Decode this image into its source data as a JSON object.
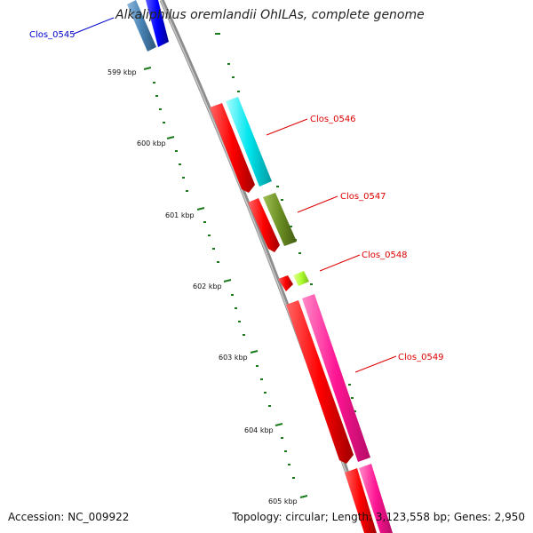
{
  "title": "Alkaliphilus oremlandii OhILAs, complete genome",
  "accession": "Accession: NC_009922",
  "summary": "Topology: circular; Length: 3,123,558 bp; Genes: 2,950",
  "ticks": [
    "599 kbp",
    "600 kbp",
    "601 kbp",
    "602 kbp",
    "603 kbp",
    "604 kbp",
    "605 kbp"
  ],
  "genes": [
    {
      "label": "Clos_0545",
      "color": "#0000cc"
    },
    {
      "label": "Clos_0546",
      "color": "#dd0000"
    },
    {
      "label": "Clos_0547",
      "color": "#dd0000"
    },
    {
      "label": "Clos_0548",
      "color": "#dd0000"
    },
    {
      "label": "Clos_0549",
      "color": "#dd0000"
    }
  ],
  "colors": {
    "backbone": "#8c8c8c",
    "tick": "#1a7a1a",
    "cds": "#ff0000",
    "cyan_feature": "#00e5ee",
    "olive_feature": "#6b8e23",
    "lime_feature": "#adff2f",
    "pink_feature": "#ff1493",
    "blue_feature": "#0000ff",
    "steelblue_feature": "#4682b4"
  }
}
